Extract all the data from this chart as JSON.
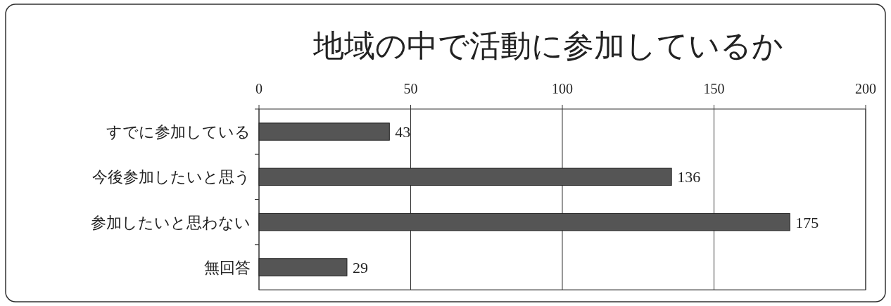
{
  "chart_data": {
    "type": "bar",
    "orientation": "horizontal",
    "title": "地域の中で活動に参加しているか",
    "categories": [
      "すでに参加している",
      "今後参加したいと思う",
      "参加したいと思わない",
      "無回答"
    ],
    "values": [
      43,
      136,
      175,
      29
    ],
    "color": "#555555",
    "xlim": [
      0,
      200
    ],
    "xticks": [
      0,
      50,
      100,
      150,
      200
    ],
    "grid": "x",
    "data_labels": true
  }
}
